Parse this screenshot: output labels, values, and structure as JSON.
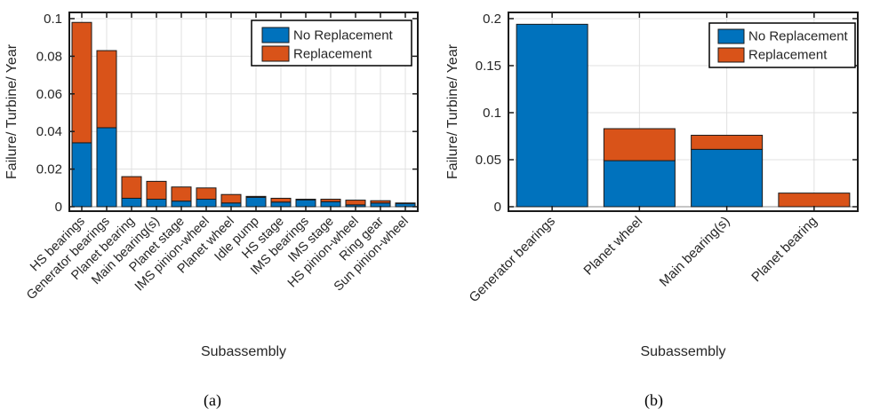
{
  "page": {
    "background": "#ffffff",
    "description": "Two stacked bar charts of wind turbine subassembly failure rates"
  },
  "colors": {
    "no_replacement": "#0072BD",
    "replacement": "#D95319",
    "bar_edge": "#1a1a1a",
    "axis": "#1a1a1a",
    "grid": "#e0e0e0",
    "text": "#262626",
    "baseline": "#8c8c8c",
    "legend_border": "#000000",
    "legend_bg": "#ffffff"
  },
  "legend": {
    "labels": [
      "No Replacement",
      "Replacement"
    ],
    "position": "top-right"
  },
  "chart_data": [
    {
      "id": "a",
      "type": "bar",
      "stacked": true,
      "caption": "(a)",
      "xlabel": "Subassembly",
      "ylabel": "Failure/ Turbine/ Year",
      "ylim": [
        0,
        0.103
      ],
      "yticks": [
        0,
        0.02,
        0.04,
        0.06,
        0.08,
        0.1
      ],
      "ytick_labels": [
        "0",
        "0.02",
        "0.04",
        "0.06",
        "0.08",
        "0.1"
      ],
      "grid": "on",
      "legend_position": "top-right",
      "categories": [
        "HS bearings",
        "Generator bearings",
        "Planet bearing",
        "Main bearing(s)",
        "Planet stage",
        "IMS pinion-wheel",
        "Planet wheel",
        "Idle pump",
        "HS stage",
        "IMS bearings",
        "IMS stage",
        "HS pinion-wheel",
        "Ring gear",
        "Sun pinion-wheel"
      ],
      "series": [
        {
          "name": "No Replacement",
          "color": "#0072BD",
          "values": [
            0.034,
            0.042,
            0.0045,
            0.004,
            0.003,
            0.004,
            0.002,
            0.005,
            0.0025,
            0.0037,
            0.0027,
            0.001,
            0.002,
            0.0018
          ]
        },
        {
          "name": "Replacement",
          "color": "#D95319",
          "values": [
            0.064,
            0.041,
            0.0115,
            0.0095,
            0.0075,
            0.006,
            0.0045,
            0.0005,
            0.002,
            0.0003,
            0.0013,
            0.0025,
            0.0012,
            0.0002
          ]
        }
      ]
    },
    {
      "id": "b",
      "type": "bar",
      "stacked": true,
      "caption": "(b)",
      "xlabel": "Subassembly",
      "ylabel": "Failure/ Turbine/ Year",
      "ylim": [
        0,
        0.207
      ],
      "yticks": [
        0,
        0.05,
        0.1,
        0.15,
        0.2
      ],
      "ytick_labels": [
        "0",
        "0.05",
        "0.1",
        "0.15",
        "0.2"
      ],
      "grid": "on",
      "legend_position": "top-right",
      "categories": [
        "Generator bearings",
        "Planet wheel",
        "Main bearing(s)",
        "Planet bearing"
      ],
      "series": [
        {
          "name": "No Replacement",
          "color": "#0072BD",
          "values": [
            0.194,
            0.049,
            0.061,
            0
          ]
        },
        {
          "name": "Replacement",
          "color": "#D95319",
          "values": [
            0,
            0.034,
            0.015,
            0.0145
          ]
        }
      ]
    }
  ]
}
